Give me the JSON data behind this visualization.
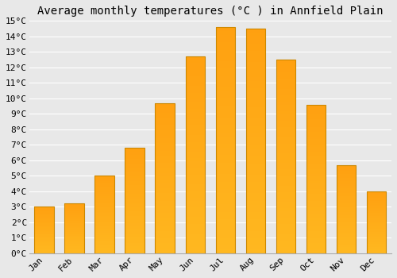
{
  "title": "Average monthly temperatures (°C ) in Annfield Plain",
  "months": [
    "Jan",
    "Feb",
    "Mar",
    "Apr",
    "May",
    "Jun",
    "Jul",
    "Aug",
    "Sep",
    "Oct",
    "Nov",
    "Dec"
  ],
  "values": [
    3.0,
    3.2,
    5.0,
    6.8,
    9.7,
    12.7,
    14.6,
    14.5,
    12.5,
    9.6,
    5.7,
    4.0
  ],
  "bar_color_bottom": "#FFB820",
  "bar_color_top": "#FFA010",
  "bar_edge_color": "#CC8800",
  "ylim": [
    0,
    15
  ],
  "yticks": [
    0,
    1,
    2,
    3,
    4,
    5,
    6,
    7,
    8,
    9,
    10,
    11,
    12,
    13,
    14,
    15
  ],
  "background_color": "#E8E8E8",
  "plot_bg_color": "#E8E8E8",
  "grid_color": "#FFFFFF",
  "title_fontsize": 10,
  "tick_fontsize": 8,
  "font_family": "monospace",
  "bar_width": 0.65
}
